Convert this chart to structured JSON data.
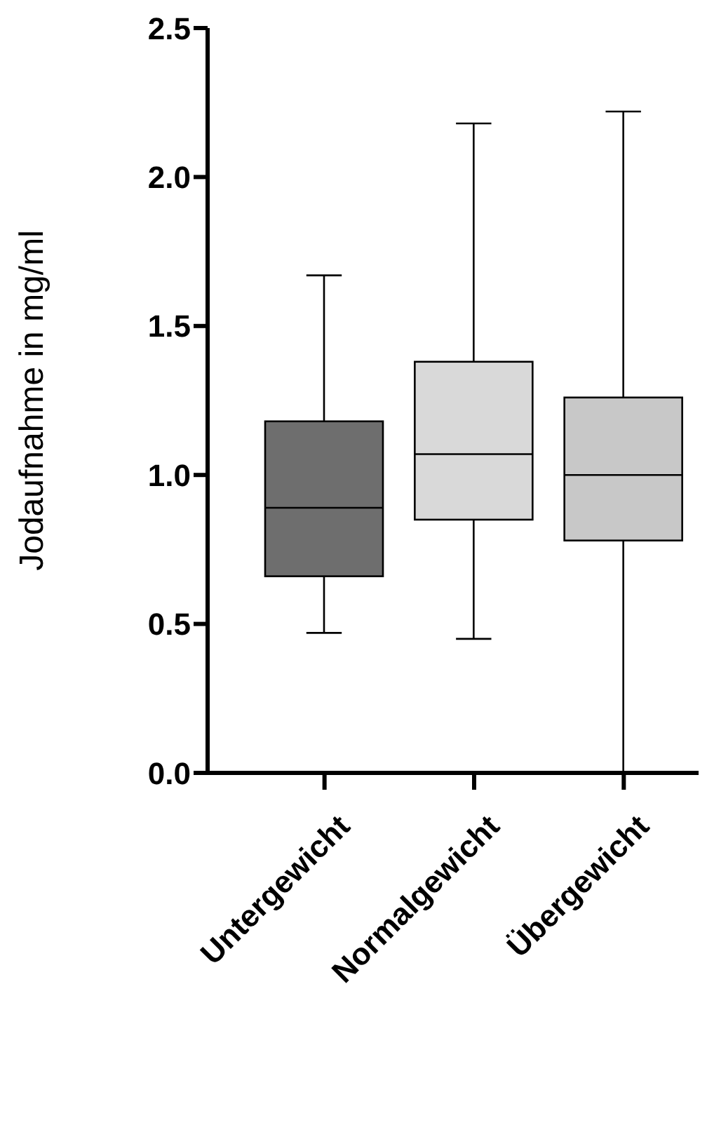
{
  "chart_data": {
    "type": "box",
    "ylabel": "Jodaufnahme in mg/ml",
    "categories": [
      "Untergewicht",
      "Normalgewicht",
      "Übergewicht"
    ],
    "boxes": [
      {
        "low": 0.47,
        "q1": 0.66,
        "median": 0.89,
        "q3": 1.18,
        "high": 1.67
      },
      {
        "low": 0.45,
        "q1": 0.85,
        "median": 1.07,
        "q3": 1.38,
        "high": 2.18
      },
      {
        "low": 0.0,
        "q1": 0.78,
        "median": 1.0,
        "q3": 1.26,
        "high": 2.22
      }
    ],
    "colors": [
      "#6e6e6e",
      "#d9d9d9",
      "#c8c8c8"
    ],
    "ylim": [
      0,
      2.5
    ],
    "yticks": [
      {
        "value": 0,
        "label": "0.0"
      },
      {
        "value": 0.5,
        "label": "0.5"
      },
      {
        "value": 1,
        "label": "1.0"
      },
      {
        "value": 1.5,
        "label": "1.5"
      },
      {
        "value": 2,
        "label": "2.0"
      },
      {
        "value": 2.5,
        "label": "2.5"
      }
    ]
  }
}
